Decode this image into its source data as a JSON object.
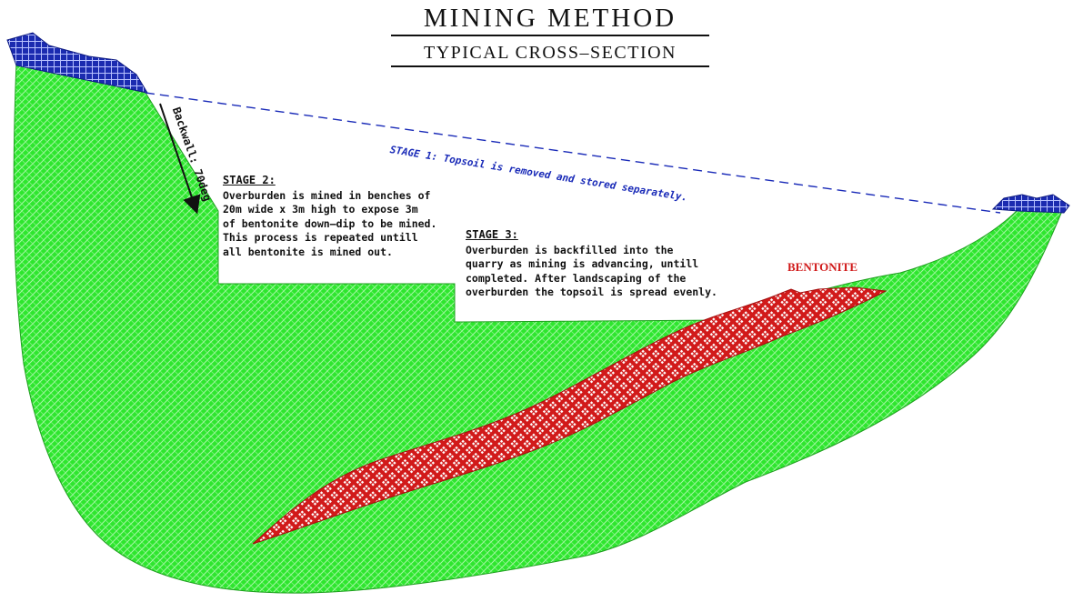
{
  "title": "MINING METHOD",
  "subtitle": "TYPICAL CROSS–SECTION",
  "stage1": {
    "text": "STAGE 1: Topsoil is removed and stored separately."
  },
  "stage2": {
    "heading": "STAGE 2:",
    "lines": [
      "Overburden is mined in benches of",
      "20m wide x 3m high to expose 3m",
      "of bentonite down–dip to be mined.",
      "This process is repeated untill",
      "all bentonite is mined out."
    ]
  },
  "stage3": {
    "heading": "STAGE 3:",
    "lines": [
      "Overburden is backfilled into the",
      "quarry as mining is advancing, untill",
      "completed. After landscaping of the",
      "overburden the topsoil is spread evenly."
    ]
  },
  "backwall_label": "Backwall: 70deg",
  "bentonite_label": "BENTONITE",
  "colors": {
    "overburden": "#2ee62e",
    "overburden_hatch": "#9ef59e",
    "topsoil": "#1b2bb0",
    "topsoil_hatch": "#a9b4ff",
    "bentonite": "#d11a1a",
    "stage1_line": "#1a2bb8"
  }
}
